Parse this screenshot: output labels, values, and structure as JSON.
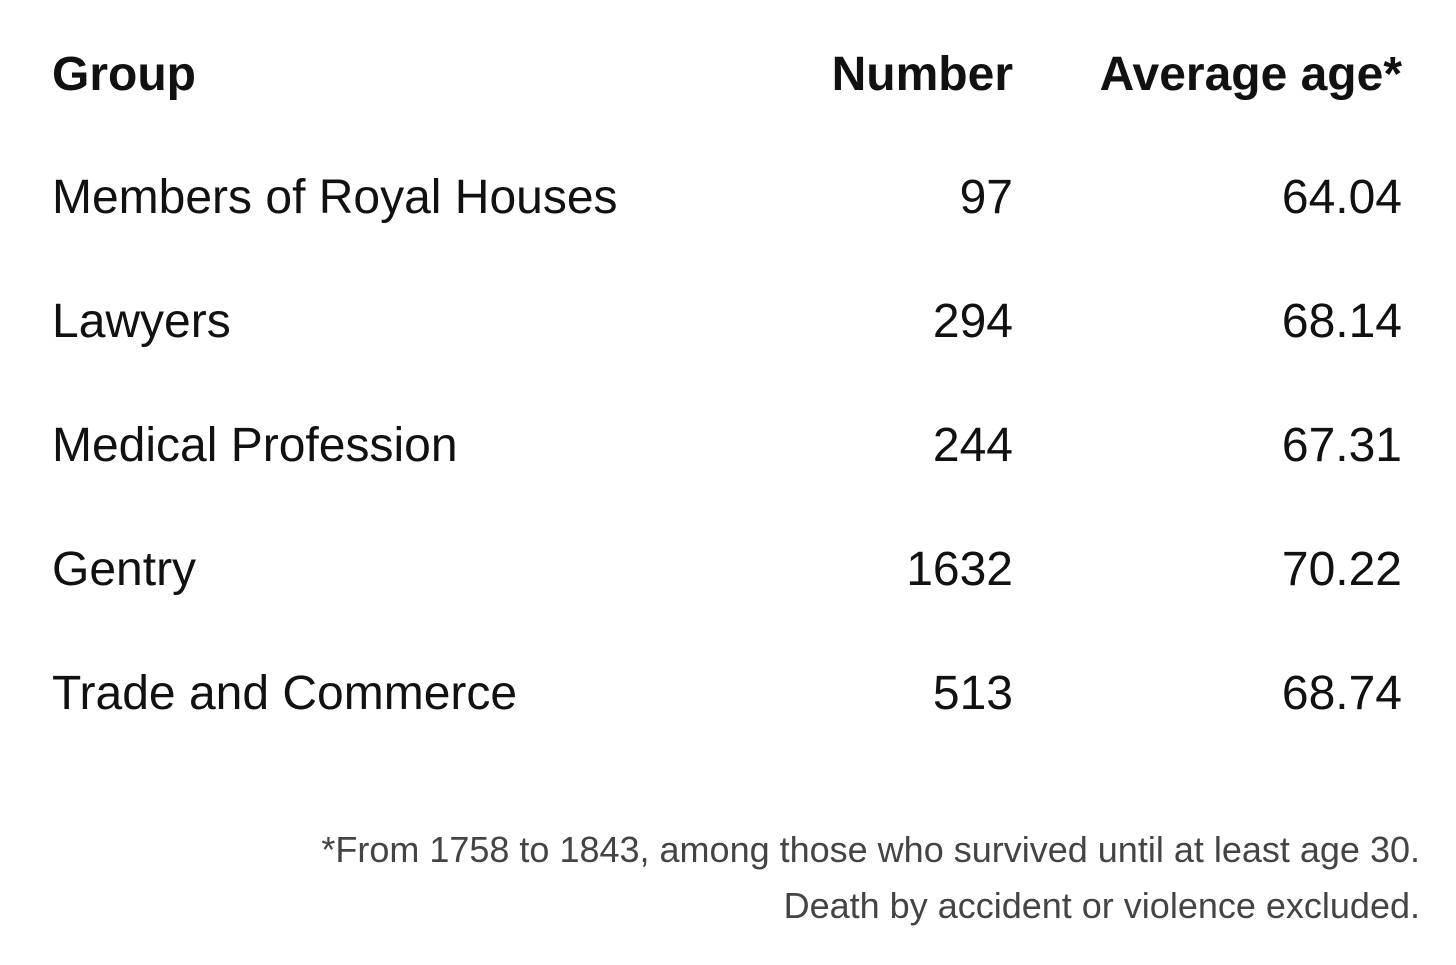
{
  "table": {
    "header": [
      "Group",
      "Number",
      "Average age*"
    ],
    "rows": [
      [
        "Members of Royal Houses",
        "97",
        "64.04"
      ],
      [
        "Lawyers",
        "294",
        "68.14"
      ],
      [
        "Medical Profession",
        "244",
        "67.31"
      ],
      [
        "Gentry",
        "1632",
        "70.22"
      ],
      [
        "Trade and Commerce",
        "513",
        "68.74"
      ]
    ]
  },
  "footnote": [
    "*From 1758 to 1843, among those who survived until at least age 30.",
    "Death by accident or violence excluded."
  ]
}
